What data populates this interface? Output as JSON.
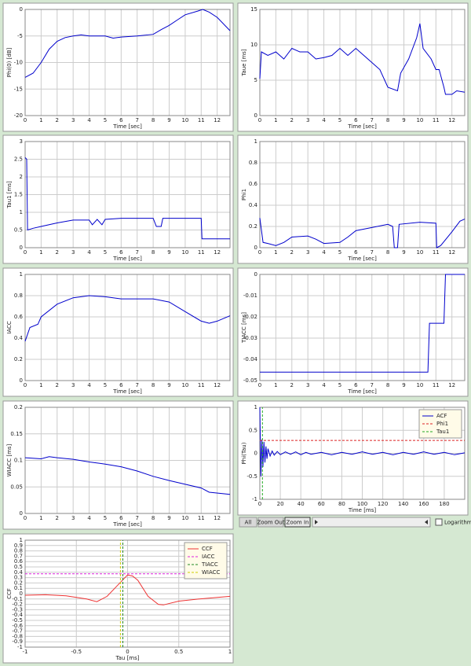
{
  "chart_data": [
    {
      "type": "line",
      "ylabel": "Phi(0) [dB]",
      "xlabel": "Time [sec]",
      "xlim": [
        0,
        12.8
      ],
      "ylim": [
        -20,
        0
      ],
      "xticks": [
        0,
        1,
        2,
        3,
        4,
        5,
        6,
        7,
        8,
        9,
        10,
        11,
        12
      ],
      "yticks": [
        0,
        -5,
        -10,
        -15,
        -20
      ],
      "grid": true,
      "series": [
        {
          "color": "#0000cc",
          "x": [
            0,
            0.5,
            1,
            1.5,
            2,
            2.5,
            3,
            3.5,
            4,
            5,
            5.5,
            6,
            7,
            8,
            8.5,
            9,
            9.5,
            10,
            10.8,
            11.1,
            11.5,
            12,
            12.8
          ],
          "values": [
            -12.8,
            -12,
            -10,
            -7.5,
            -6,
            -5.3,
            -5,
            -4.8,
            -5,
            -5,
            -5.4,
            -5.2,
            -5,
            -4.7,
            -3.8,
            -3,
            -2,
            -1,
            -0.3,
            0,
            -0.5,
            -1.5,
            -4
          ]
        }
      ]
    },
    {
      "type": "line",
      "ylabel": "Taue [ms]",
      "xlabel": "Time [sec]",
      "xlim": [
        0,
        12.8
      ],
      "ylim": [
        0,
        15
      ],
      "xticks": [
        0,
        1,
        2,
        3,
        4,
        5,
        6,
        7,
        8,
        9,
        10,
        11,
        12
      ],
      "yticks": [
        0,
        5,
        10,
        15
      ],
      "grid": true,
      "series": [
        {
          "color": "#0000cc",
          "x": [
            0,
            0.1,
            0.5,
            1,
            1.5,
            2,
            2.5,
            3,
            3.5,
            4,
            4.5,
            5,
            5.5,
            6,
            6.5,
            7,
            7.5,
            8,
            8.6,
            8.8,
            9.3,
            9.8,
            10,
            10.2,
            10.7,
            11,
            11.2,
            11.5,
            11.6,
            12,
            12.3,
            12.8
          ],
          "values": [
            5.2,
            9,
            8.5,
            9,
            8,
            9.5,
            9,
            9,
            8,
            8.2,
            8.5,
            9.5,
            8.5,
            9.5,
            8.5,
            7.5,
            6.5,
            4,
            3.5,
            6,
            8,
            11,
            13,
            9.5,
            8,
            6.5,
            6.5,
            4,
            3,
            3,
            3.5,
            3.3
          ]
        }
      ]
    },
    {
      "type": "line",
      "ylabel": "Tau1 [ms]",
      "xlabel": "Time [sec]",
      "xlim": [
        0,
        12.8
      ],
      "ylim": [
        0,
        3
      ],
      "xticks": [
        0,
        1,
        2,
        3,
        4,
        5,
        6,
        7,
        8,
        9,
        10,
        11,
        12
      ],
      "yticks": [
        0,
        0.5,
        1,
        1.5,
        2,
        2.5,
        3
      ],
      "grid": true,
      "series": [
        {
          "color": "#0000cc",
          "x": [
            0,
            0.1,
            0.15,
            0.5,
            1,
            2,
            3,
            4,
            4.2,
            4.5,
            4.8,
            5,
            6,
            8,
            8.2,
            8.5,
            8.6,
            11,
            11.05,
            12.8
          ],
          "values": [
            2.55,
            2.5,
            0.5,
            0.55,
            0.6,
            0.7,
            0.78,
            0.78,
            0.65,
            0.8,
            0.65,
            0.8,
            0.83,
            0.83,
            0.6,
            0.6,
            0.83,
            0.83,
            0.25,
            0.25
          ]
        }
      ]
    },
    {
      "type": "line",
      "ylabel": "Phi1",
      "xlabel": "Time [sec]",
      "xlim": [
        0,
        12.8
      ],
      "ylim": [
        0,
        1
      ],
      "xticks": [
        0,
        1,
        2,
        3,
        4,
        5,
        6,
        7,
        8,
        9,
        10,
        11,
        12
      ],
      "yticks": [
        0,
        0.2,
        0.4,
        0.6,
        0.8,
        1
      ],
      "grid": true,
      "series": [
        {
          "color": "#0000cc",
          "x": [
            0,
            0.2,
            0.5,
            1,
            1.5,
            2,
            3,
            3.5,
            4,
            5,
            5.5,
            6,
            7,
            8,
            8.3,
            8.4,
            8.6,
            8.7,
            10,
            11,
            11.05,
            11.3,
            12,
            12.5,
            12.8
          ],
          "values": [
            0.28,
            0.05,
            0.04,
            0.02,
            0.05,
            0.1,
            0.11,
            0.08,
            0.04,
            0.05,
            0.1,
            0.16,
            0.19,
            0.22,
            0.2,
            0,
            0,
            0.22,
            0.24,
            0.23,
            0,
            0.02,
            0.15,
            0.25,
            0.27
          ]
        }
      ]
    },
    {
      "type": "line",
      "ylabel": "IACC",
      "xlabel": "Time [sec]",
      "xlim": [
        0,
        12.8
      ],
      "ylim": [
        0,
        1
      ],
      "xticks": [
        0,
        1,
        2,
        3,
        4,
        5,
        6,
        7,
        8,
        9,
        10,
        11,
        12
      ],
      "yticks": [
        0,
        0.2,
        0.4,
        0.6,
        0.8,
        1
      ],
      "grid": true,
      "series": [
        {
          "color": "#0000cc",
          "x": [
            0,
            0.3,
            0.8,
            1,
            2,
            3,
            4,
            5,
            6,
            7,
            8,
            9,
            10,
            11,
            11.5,
            12,
            12.8
          ],
          "values": [
            0.37,
            0.5,
            0.53,
            0.6,
            0.72,
            0.78,
            0.8,
            0.79,
            0.77,
            0.77,
            0.77,
            0.74,
            0.65,
            0.56,
            0.54,
            0.56,
            0.61
          ]
        }
      ]
    },
    {
      "type": "line",
      "ylabel": "TIACC [ms]",
      "xlabel": "Time [sec]",
      "xlim": [
        0,
        12.8
      ],
      "ylim": [
        -0.05,
        0
      ],
      "xticks": [
        0,
        1,
        2,
        3,
        4,
        5,
        6,
        7,
        8,
        9,
        10,
        11,
        12
      ],
      "yticks": [
        0,
        -0.01,
        -0.02,
        -0.03,
        -0.04,
        -0.05
      ],
      "grid": true,
      "series": [
        {
          "color": "#0000cc",
          "x": [
            0,
            10.5,
            10.6,
            11.5,
            11.6,
            12.8
          ],
          "values": [
            -0.046,
            -0.046,
            -0.023,
            -0.023,
            0,
            0
          ]
        }
      ]
    },
    {
      "type": "line",
      "ylabel": "WIACC [ms]",
      "xlabel": "Time [sec]",
      "xlim": [
        0,
        12.8
      ],
      "ylim": [
        0,
        0.2
      ],
      "xticks": [
        0,
        1,
        2,
        3,
        4,
        5,
        6,
        7,
        8,
        9,
        10,
        11,
        12
      ],
      "yticks": [
        0,
        0.05,
        0.1,
        0.15,
        0.2
      ],
      "grid": true,
      "series": [
        {
          "color": "#0000cc",
          "x": [
            0,
            1,
            1.5,
            2,
            3,
            4,
            5,
            6,
            7,
            8,
            9,
            10,
            11,
            11.5,
            12.8
          ],
          "values": [
            0.105,
            0.103,
            0.107,
            0.105,
            0.102,
            0.097,
            0.093,
            0.088,
            0.08,
            0.07,
            0.062,
            0.055,
            0.048,
            0.04,
            0.036
          ]
        }
      ]
    },
    {
      "type": "line",
      "ylabel": "Phi(Tau)",
      "xlabel": "Time [ms]",
      "xlim": [
        0,
        200
      ],
      "ylim": [
        -1,
        1
      ],
      "xticks": [
        0,
        20,
        40,
        60,
        80,
        100,
        120,
        140,
        160,
        180
      ],
      "yticks": [
        -1,
        -0.5,
        0,
        0.5,
        1
      ],
      "grid": true,
      "legend": "upper right",
      "series": [
        {
          "name": "ACF",
          "color": "#0000cc",
          "x": [
            0,
            1,
            2,
            3,
            4,
            5,
            6,
            7,
            8,
            10,
            12,
            14,
            17,
            20,
            25,
            30,
            35,
            40,
            45,
            50,
            60,
            70,
            80,
            90,
            100,
            110,
            120,
            130,
            140,
            150,
            160,
            170,
            180,
            190,
            200
          ],
          "values": [
            1,
            -0.5,
            0.3,
            -0.3,
            0.25,
            -0.2,
            0.15,
            -0.12,
            0.1,
            -0.06,
            0.05,
            -0.04,
            0.04,
            -0.03,
            0.03,
            -0.02,
            0.03,
            -0.03,
            0.02,
            -0.02,
            0.02,
            -0.03,
            0.02,
            -0.02,
            0.03,
            -0.02,
            0.02,
            -0.03,
            0.02,
            -0.02,
            0.03,
            -0.02,
            0.02,
            -0.03,
            0.01
          ]
        },
        {
          "name": "Phi1",
          "color": "#dd2222",
          "dash": true,
          "x": [
            0,
            200
          ],
          "values": [
            0.28,
            0.28
          ]
        },
        {
          "name": "Tau1",
          "color": "#22aa22",
          "dash": true,
          "x": [
            2.5,
            2.5
          ],
          "values": [
            -1,
            1
          ]
        }
      ]
    },
    {
      "type": "line",
      "ylabel": "CCF",
      "xlabel": "Tau [ms]",
      "xlim": [
        -1,
        1
      ],
      "ylim": [
        -1,
        1
      ],
      "xticks": [
        -1,
        -0.5,
        0,
        0.5,
        1
      ],
      "yticks": [
        1,
        0.9,
        0.8,
        0.7,
        0.6,
        0.5,
        0.4,
        0.3,
        0.2,
        0.1,
        0,
        -0.1,
        -0.2,
        -0.3,
        -0.4,
        -0.5,
        -0.6,
        -0.7,
        -0.8,
        -0.9,
        -1
      ],
      "grid": true,
      "legend": "upper right",
      "series": [
        {
          "name": "CCF",
          "color": "#ee3333",
          "x": [
            -1,
            -0.8,
            -0.6,
            -0.4,
            -0.3,
            -0.2,
            -0.1,
            0,
            0.05,
            0.1,
            0.2,
            0.3,
            0.35,
            0.5,
            0.7,
            1
          ],
          "values": [
            -0.03,
            -0.02,
            -0.04,
            -0.1,
            -0.15,
            -0.05,
            0.15,
            0.35,
            0.33,
            0.25,
            -0.05,
            -0.2,
            -0.21,
            -0.14,
            -0.1,
            -0.05
          ]
        },
        {
          "name": "IACC",
          "color": "#dd22dd",
          "dash": true,
          "x": [
            -1,
            1
          ],
          "values": [
            0.37,
            0.37
          ]
        },
        {
          "name": "TIACC",
          "color": "#228822",
          "dash": true,
          "x": [
            -0.046,
            -0.046
          ],
          "values": [
            -1,
            1
          ]
        },
        {
          "name": "WIACC",
          "color": "#cccc00",
          "dash": true,
          "x": [
            -0.07,
            -0.07
          ],
          "values": [
            -1,
            1
          ]
        }
      ]
    }
  ],
  "controls": {
    "buttons": [
      "All",
      "Zoom Out",
      "Zoom In"
    ],
    "checkbox": "Logarithm"
  }
}
